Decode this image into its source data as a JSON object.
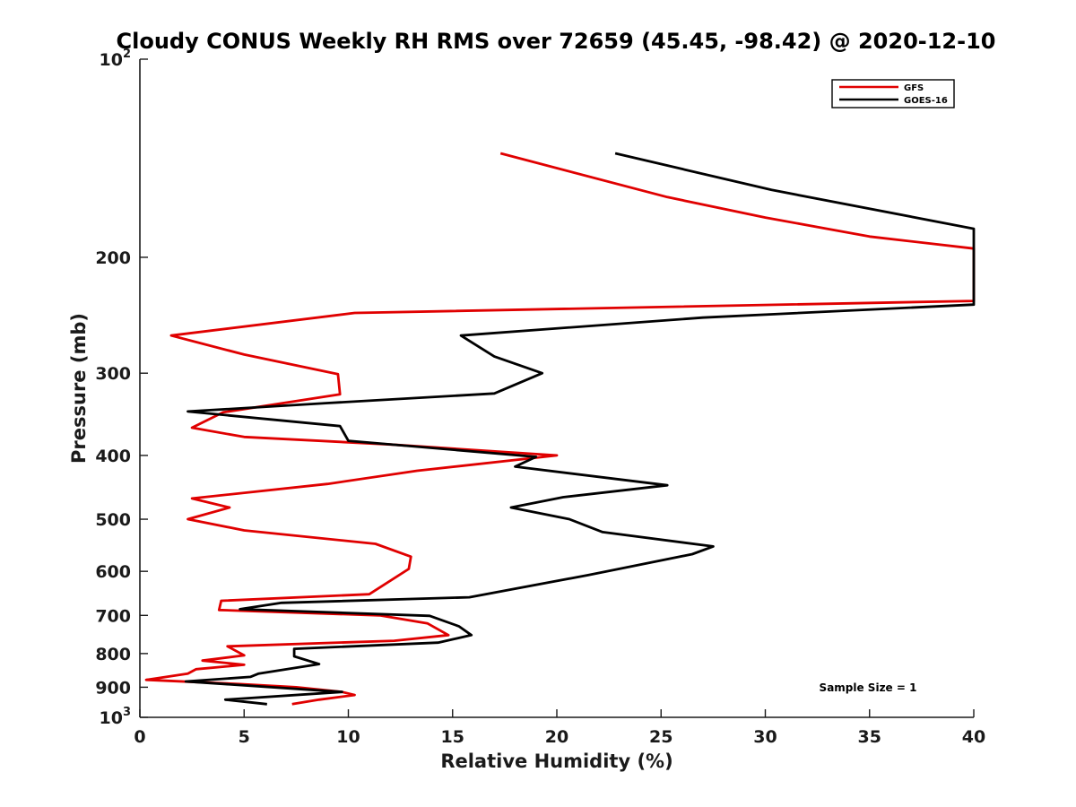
{
  "chart_data": {
    "type": "line",
    "title": "Cloudy CONUS Weekly RH RMS over 72659 (45.45, -98.42) @ 2020-12-10",
    "xlabel": "Relative Humidity (%)",
    "ylabel": "Pressure (mb)",
    "xlim": [
      0,
      40
    ],
    "ylim": [
      100,
      1000
    ],
    "y_scale": "log",
    "y_reversed": true,
    "x_ticks": [
      "0",
      "5",
      "10",
      "15",
      "20",
      "25",
      "30",
      "35",
      "40"
    ],
    "y_ticks": [
      {
        "value": 100,
        "label": "10",
        "sup": "2"
      },
      {
        "value": 200,
        "label": "200",
        "sup": ""
      },
      {
        "value": 300,
        "label": "300",
        "sup": ""
      },
      {
        "value": 400,
        "label": "400",
        "sup": ""
      },
      {
        "value": 500,
        "label": "500",
        "sup": ""
      },
      {
        "value": 600,
        "label": "600",
        "sup": ""
      },
      {
        "value": 700,
        "label": "700",
        "sup": ""
      },
      {
        "value": 800,
        "label": "800",
        "sup": ""
      },
      {
        "value": 900,
        "label": "900",
        "sup": ""
      },
      {
        "value": 1000,
        "label": "10",
        "sup": "3"
      }
    ],
    "grid": false,
    "legend_position": "top-right",
    "annotation": "Sample Size = 1",
    "series": [
      {
        "name": "GFS",
        "color": "#e00000",
        "points": [
          {
            "x": 17.3,
            "y": 139
          },
          {
            "x": 25.3,
            "y": 162
          },
          {
            "x": 30.0,
            "y": 174
          },
          {
            "x": 35.0,
            "y": 186
          },
          {
            "x": 40.0,
            "y": 194
          },
          {
            "x": 40.0,
            "y": 233
          },
          {
            "x": 10.3,
            "y": 243
          },
          {
            "x": 1.5,
            "y": 263
          },
          {
            "x": 5.0,
            "y": 281
          },
          {
            "x": 9.5,
            "y": 301
          },
          {
            "x": 9.6,
            "y": 323
          },
          {
            "x": 4.0,
            "y": 344
          },
          {
            "x": 2.5,
            "y": 363
          },
          {
            "x": 5.0,
            "y": 375
          },
          {
            "x": 12.0,
            "y": 385
          },
          {
            "x": 20.0,
            "y": 400
          },
          {
            "x": 13.3,
            "y": 422
          },
          {
            "x": 9.0,
            "y": 442
          },
          {
            "x": 2.5,
            "y": 465
          },
          {
            "x": 4.3,
            "y": 480
          },
          {
            "x": 2.3,
            "y": 500
          },
          {
            "x": 5.0,
            "y": 520
          },
          {
            "x": 11.3,
            "y": 545
          },
          {
            "x": 13.0,
            "y": 570
          },
          {
            "x": 12.9,
            "y": 595
          },
          {
            "x": 11.0,
            "y": 650
          },
          {
            "x": 3.9,
            "y": 665
          },
          {
            "x": 3.8,
            "y": 687
          },
          {
            "x": 11.5,
            "y": 700
          },
          {
            "x": 13.8,
            "y": 720
          },
          {
            "x": 14.8,
            "y": 750
          },
          {
            "x": 12.2,
            "y": 765
          },
          {
            "x": 4.2,
            "y": 780
          },
          {
            "x": 5.0,
            "y": 805
          },
          {
            "x": 3.0,
            "y": 820
          },
          {
            "x": 5.0,
            "y": 832
          },
          {
            "x": 2.7,
            "y": 845
          },
          {
            "x": 2.3,
            "y": 858
          },
          {
            "x": 0.3,
            "y": 877
          },
          {
            "x": 4.8,
            "y": 890
          },
          {
            "x": 7.5,
            "y": 900
          },
          {
            "x": 9.7,
            "y": 915
          },
          {
            "x": 10.3,
            "y": 925
          },
          {
            "x": 8.6,
            "y": 940
          },
          {
            "x": 7.3,
            "y": 955
          }
        ]
      },
      {
        "name": "GOES-16",
        "color": "#000000",
        "points": [
          {
            "x": 22.8,
            "y": 139
          },
          {
            "x": 30.3,
            "y": 158
          },
          {
            "x": 40.0,
            "y": 181
          },
          {
            "x": 40.0,
            "y": 236
          },
          {
            "x": 27.0,
            "y": 247
          },
          {
            "x": 15.4,
            "y": 263
          },
          {
            "x": 17.0,
            "y": 283
          },
          {
            "x": 19.3,
            "y": 300
          },
          {
            "x": 17.0,
            "y": 322
          },
          {
            "x": 9.0,
            "y": 333
          },
          {
            "x": 2.3,
            "y": 343
          },
          {
            "x": 9.6,
            "y": 361
          },
          {
            "x": 10.0,
            "y": 380
          },
          {
            "x": 19.0,
            "y": 402
          },
          {
            "x": 18.0,
            "y": 416
          },
          {
            "x": 25.3,
            "y": 444
          },
          {
            "x": 20.3,
            "y": 463
          },
          {
            "x": 17.8,
            "y": 480
          },
          {
            "x": 20.6,
            "y": 500
          },
          {
            "x": 22.2,
            "y": 523
          },
          {
            "x": 27.5,
            "y": 550
          },
          {
            "x": 26.5,
            "y": 565
          },
          {
            "x": 21.5,
            "y": 608
          },
          {
            "x": 15.8,
            "y": 657
          },
          {
            "x": 6.8,
            "y": 670
          },
          {
            "x": 4.8,
            "y": 685
          },
          {
            "x": 13.9,
            "y": 701
          },
          {
            "x": 15.3,
            "y": 727
          },
          {
            "x": 15.9,
            "y": 750
          },
          {
            "x": 14.3,
            "y": 770
          },
          {
            "x": 7.4,
            "y": 787
          },
          {
            "x": 7.4,
            "y": 808
          },
          {
            "x": 8.6,
            "y": 830
          },
          {
            "x": 5.7,
            "y": 858
          },
          {
            "x": 5.3,
            "y": 868
          },
          {
            "x": 2.2,
            "y": 882
          },
          {
            "x": 9.7,
            "y": 915
          },
          {
            "x": 4.1,
            "y": 940
          },
          {
            "x": 6.1,
            "y": 955
          }
        ]
      }
    ]
  }
}
